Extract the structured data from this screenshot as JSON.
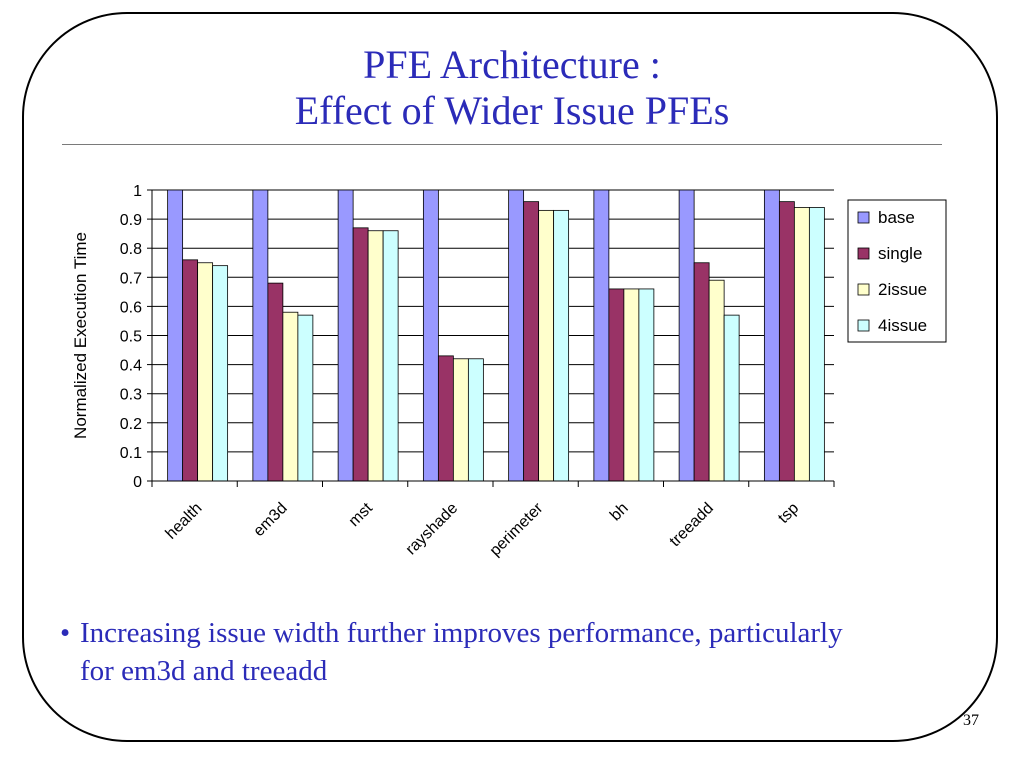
{
  "slide": {
    "title_line1": "PFE Architecture :",
    "title_line2": "Effect of Wider Issue PFEs",
    "bullet_line1": "Increasing issue width further improves performance, particularly",
    "bullet_line2": "for em3d and treeadd",
    "bullet_marker": "•",
    "page_number": "37"
  },
  "colors": {
    "title": "#2b2bb8",
    "base": "#9999ff",
    "single": "#993366",
    "2issue": "#ffffcc",
    "4issue": "#ccffff"
  },
  "chart_data": {
    "type": "bar",
    "categories": [
      "health",
      "em3d",
      "mst",
      "rayshade",
      "perimeter",
      "bh",
      "treeadd",
      "tsp"
    ],
    "series": [
      {
        "name": "base",
        "values": [
          1,
          1,
          1,
          1,
          1,
          1,
          1,
          1
        ]
      },
      {
        "name": "single",
        "values": [
          0.76,
          0.68,
          0.87,
          0.43,
          0.96,
          0.66,
          0.75,
          0.96
        ]
      },
      {
        "name": "2issue",
        "values": [
          0.75,
          0.58,
          0.86,
          0.42,
          0.93,
          0.66,
          0.69,
          0.94
        ]
      },
      {
        "name": "4issue",
        "values": [
          0.74,
          0.57,
          0.86,
          0.42,
          0.93,
          0.66,
          0.57,
          0.94
        ]
      }
    ],
    "ylabel": "Normalized Execution Time",
    "xlabel": "",
    "ylim": [
      0,
      1
    ],
    "yticks": [
      "0",
      "0.1",
      "0.2",
      "0.3",
      "0.4",
      "0.5",
      "0.6",
      "0.7",
      "0.8",
      "0.9",
      "1"
    ],
    "grid": true,
    "legend": "right"
  }
}
